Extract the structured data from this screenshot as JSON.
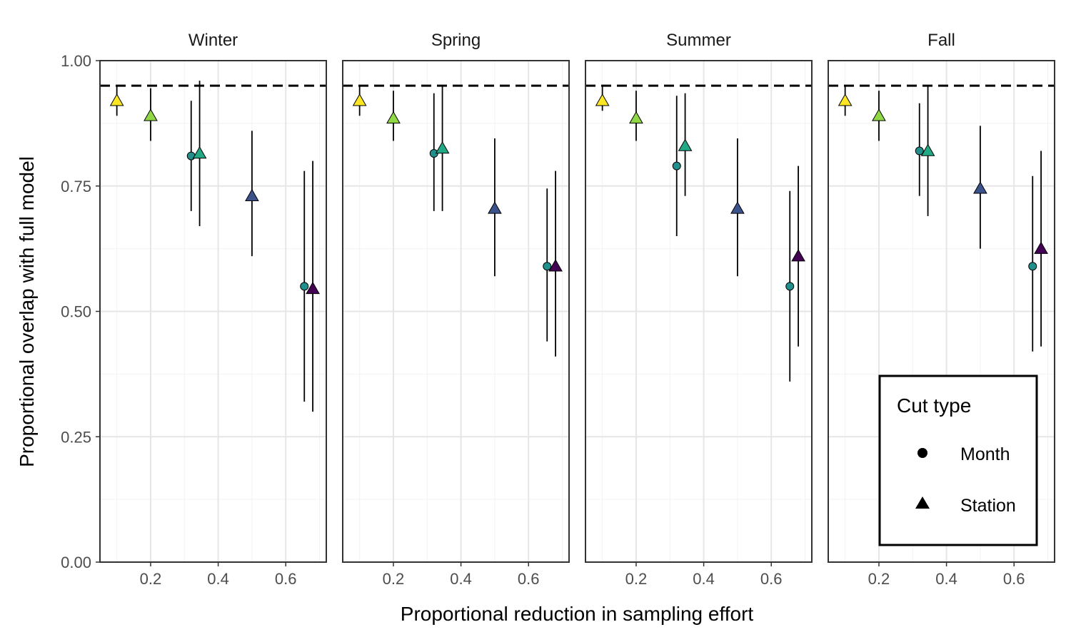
{
  "chart_data": {
    "type": "scatter",
    "xlabel": "Proportional reduction in sampling effort",
    "ylabel": "Proportional overlap with full model",
    "xlim": [
      0.05,
      0.72
    ],
    "ylim": [
      0,
      1
    ],
    "x_ticks": [
      0.2,
      0.4,
      0.6
    ],
    "x_tick_labels": [
      "0.2",
      "0.4",
      "0.6"
    ],
    "y_ticks": [
      0,
      0.25,
      0.5,
      0.75,
      1
    ],
    "y_tick_labels": [
      "0.00",
      "0.25",
      "0.50",
      "0.75",
      "1.00"
    ],
    "reference_line": 0.95,
    "grid": true,
    "legend": {
      "title": "Cut type",
      "position": "bottom-right",
      "entries": [
        {
          "label": "Month",
          "shape": "circle"
        },
        {
          "label": "Station",
          "shape": "triangle"
        }
      ]
    },
    "colors": {
      "0.1": "#FDE725",
      "0.2": "#8FD744",
      "0.32": "#21908C",
      "0.345": "#22A884",
      "0.5": "#3B528B",
      "0.66": "#440154",
      "0.68": "#440154"
    },
    "panels": [
      {
        "title": "Winter",
        "points": [
          {
            "x": 0.1,
            "y": 0.92,
            "lo": 0.89,
            "hi": 0.95,
            "cut": "Station"
          },
          {
            "x": 0.2,
            "y": 0.89,
            "lo": 0.84,
            "hi": 0.945,
            "cut": "Station"
          },
          {
            "x": 0.32,
            "y": 0.81,
            "lo": 0.7,
            "hi": 0.92,
            "cut": "Month"
          },
          {
            "x": 0.345,
            "y": 0.815,
            "lo": 0.67,
            "hi": 0.96,
            "cut": "Station"
          },
          {
            "x": 0.5,
            "y": 0.73,
            "lo": 0.61,
            "hi": 0.86,
            "cut": "Station"
          },
          {
            "x": 0.655,
            "y": 0.55,
            "lo": 0.32,
            "hi": 0.78,
            "cut": "Month"
          },
          {
            "x": 0.68,
            "y": 0.545,
            "lo": 0.3,
            "hi": 0.8,
            "cut": "Station"
          }
        ]
      },
      {
        "title": "Spring",
        "points": [
          {
            "x": 0.1,
            "y": 0.92,
            "lo": 0.89,
            "hi": 0.95,
            "cut": "Station"
          },
          {
            "x": 0.2,
            "y": 0.885,
            "lo": 0.84,
            "hi": 0.94,
            "cut": "Station"
          },
          {
            "x": 0.32,
            "y": 0.815,
            "lo": 0.7,
            "hi": 0.935,
            "cut": "Month"
          },
          {
            "x": 0.345,
            "y": 0.825,
            "lo": 0.7,
            "hi": 0.95,
            "cut": "Station"
          },
          {
            "x": 0.5,
            "y": 0.705,
            "lo": 0.57,
            "hi": 0.845,
            "cut": "Station"
          },
          {
            "x": 0.655,
            "y": 0.59,
            "lo": 0.44,
            "hi": 0.745,
            "cut": "Month"
          },
          {
            "x": 0.68,
            "y": 0.59,
            "lo": 0.41,
            "hi": 0.78,
            "cut": "Station"
          }
        ]
      },
      {
        "title": "Summer",
        "points": [
          {
            "x": 0.1,
            "y": 0.92,
            "lo": 0.9,
            "hi": 0.95,
            "cut": "Station"
          },
          {
            "x": 0.2,
            "y": 0.885,
            "lo": 0.84,
            "hi": 0.94,
            "cut": "Station"
          },
          {
            "x": 0.32,
            "y": 0.79,
            "lo": 0.65,
            "hi": 0.93,
            "cut": "Month"
          },
          {
            "x": 0.345,
            "y": 0.83,
            "lo": 0.73,
            "hi": 0.935,
            "cut": "Station"
          },
          {
            "x": 0.5,
            "y": 0.705,
            "lo": 0.57,
            "hi": 0.845,
            "cut": "Station"
          },
          {
            "x": 0.655,
            "y": 0.55,
            "lo": 0.36,
            "hi": 0.74,
            "cut": "Month"
          },
          {
            "x": 0.68,
            "y": 0.61,
            "lo": 0.43,
            "hi": 0.79,
            "cut": "Station"
          }
        ]
      },
      {
        "title": "Fall",
        "points": [
          {
            "x": 0.1,
            "y": 0.92,
            "lo": 0.89,
            "hi": 0.95,
            "cut": "Station"
          },
          {
            "x": 0.2,
            "y": 0.89,
            "lo": 0.84,
            "hi": 0.94,
            "cut": "Station"
          },
          {
            "x": 0.32,
            "y": 0.82,
            "lo": 0.73,
            "hi": 0.915,
            "cut": "Month"
          },
          {
            "x": 0.345,
            "y": 0.82,
            "lo": 0.69,
            "hi": 0.95,
            "cut": "Station"
          },
          {
            "x": 0.5,
            "y": 0.745,
            "lo": 0.625,
            "hi": 0.87,
            "cut": "Station"
          },
          {
            "x": 0.655,
            "y": 0.59,
            "lo": 0.42,
            "hi": 0.77,
            "cut": "Month"
          },
          {
            "x": 0.68,
            "y": 0.625,
            "lo": 0.43,
            "hi": 0.82,
            "cut": "Station"
          }
        ]
      }
    ]
  }
}
